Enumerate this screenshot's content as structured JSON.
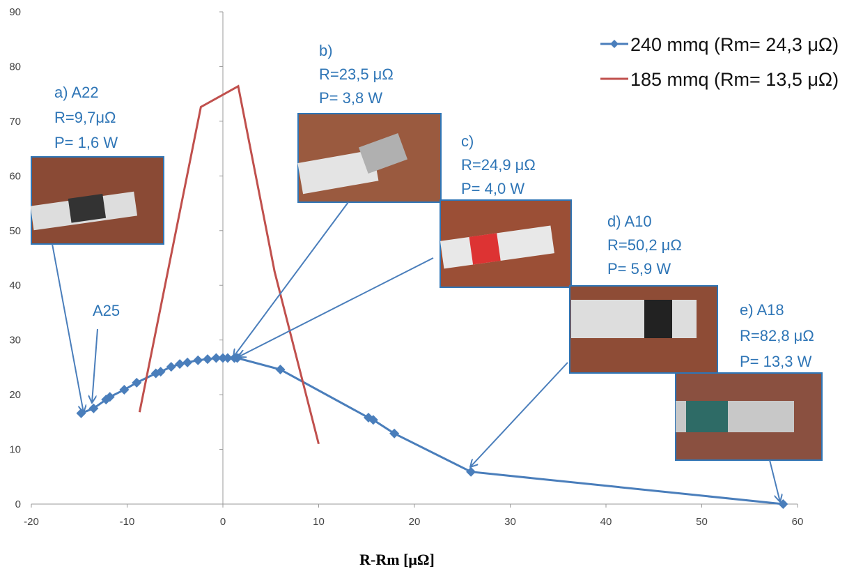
{
  "chart_data": {
    "type": "line",
    "xlabel": "R-Rm [μΩ]",
    "xlim": [
      -20,
      60
    ],
    "xticks": [
      -20,
      -10,
      0,
      10,
      20,
      30,
      40,
      50,
      60
    ],
    "ylim": [
      0,
      90
    ],
    "yticks": [
      0,
      10,
      20,
      30,
      40,
      50,
      60,
      70,
      80,
      90
    ],
    "series": [
      {
        "name": "240 mmq  (Rm= 24,3 μΩ)",
        "color": "#4a7ebb",
        "marker": "diamond",
        "x": [
          -14.8,
          -13.5,
          -12.2,
          -11.8,
          -10.3,
          -9,
          -7,
          -6.5,
          -5.4,
          -4.5,
          -3.7,
          -2.6,
          -1.6,
          -0.7,
          0,
          0.5,
          1.2,
          1.5,
          6,
          15.2,
          15.7,
          17.9,
          25.9,
          58.5
        ],
        "values": [
          16.6,
          17.5,
          19.1,
          19.6,
          20.9,
          22.2,
          23.9,
          24.2,
          25.1,
          25.6,
          25.9,
          26.3,
          26.5,
          26.7,
          26.7,
          26.7,
          26.7,
          26.7,
          24.6,
          15.8,
          15.4,
          12.9,
          5.9,
          0
        ]
      },
      {
        "name": "185 mmq  (Rm= 13,5 μΩ)",
        "color": "#c0504d",
        "x": [
          -8.7,
          -2.3,
          1.6,
          5.4,
          10
        ],
        "values": [
          16.8,
          72.6,
          76.4,
          42.5,
          11
        ]
      }
    ],
    "annotations": [
      {
        "lines": [
          "a) A22",
          "R=9,7μΩ",
          "P= 1,6 W"
        ]
      },
      {
        "lines": [
          "A25"
        ]
      },
      {
        "lines": [
          "b)",
          "R=23,5 μΩ",
          "P= 3,8 W"
        ]
      },
      {
        "lines": [
          "c)",
          "R=24,9 μΩ",
          "P= 4,0 W"
        ]
      },
      {
        "lines": [
          "d) A10",
          "R=50,2 μΩ",
          "P= 5,9 W"
        ]
      },
      {
        "lines": [
          "e) A18",
          "R=82,8 μΩ",
          "P= 13,3 W"
        ]
      }
    ]
  }
}
